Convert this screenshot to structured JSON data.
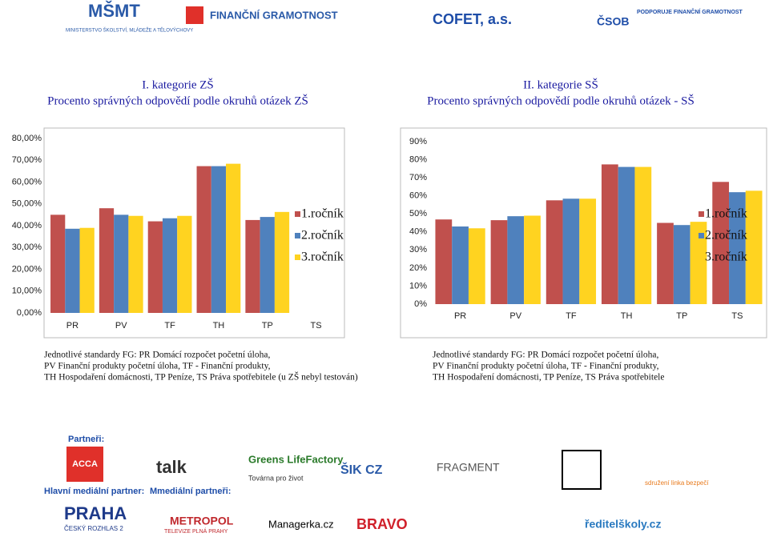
{
  "logos": {
    "msmt": "MINISTERSTVO ŠKOLSTVÍ, MLÁDEŽE A TĚLOVÝCHOVY",
    "fg": "FINANČNÍ GRAMOTNOST",
    "cofet": "COFET, a.s.",
    "csob": "ČSOB",
    "csob_text": "PODPORUJE FINANČNÍ GRAMOTNOST"
  },
  "chart_data": [
    {
      "type": "bar",
      "title": "I. kategorie ZŠ",
      "subtitle": "Procento správných odpovědí podle okruhů otázek  ZŠ",
      "categories": [
        "PR",
        "PV",
        "TF",
        "TH",
        "TP",
        "TS"
      ],
      "series": [
        {
          "name": "1.ročník",
          "color": "#c0504d",
          "values": [
            45,
            48,
            42,
            67.3,
            42.6,
            null
          ]
        },
        {
          "name": "2.ročník",
          "color": "#4f81bd",
          "values": [
            38.6,
            45,
            43.4,
            67.3,
            44,
            null
          ]
        },
        {
          "name": "3.ročník",
          "color": "#ffd320",
          "values": [
            39,
            44.5,
            44.5,
            68.4,
            46.3,
            null
          ]
        }
      ],
      "ylim": [
        0,
        80
      ],
      "yticks": [
        {
          "value": 0,
          "label": "0,00%"
        },
        {
          "value": 10,
          "label": "10,00%"
        },
        {
          "value": 20,
          "label": "20,00%"
        },
        {
          "value": 30,
          "label": "30,00%"
        },
        {
          "value": 40,
          "label": "40,00%"
        },
        {
          "value": 50,
          "label": "50,00%"
        },
        {
          "value": 60,
          "label": "60,00%"
        },
        {
          "value": 70,
          "label": "70,00%"
        },
        {
          "value": 80,
          "label": "80,00%"
        }
      ],
      "legend": "right",
      "notes": [
        "Jednotlivé standardy FG: PR  Domácí rozpočet  početní úloha,",
        "PV  Finanční produkty  početní úloha, TF - Finanční produkty,",
        "TH  Hospodaření domácnosti, TP  Peníze, TS  Práva spotřebitele (u ZŠ nebyl testován)"
      ]
    },
    {
      "type": "bar",
      "title": "II. kategorie SŠ",
      "subtitle": "Procento správných odpovědí podle okruhů otázek - SŠ",
      "categories": [
        "PR",
        "PV",
        "TF",
        "TH",
        "TP",
        "TS"
      ],
      "series": [
        {
          "name": "1.ročník",
          "color": "#c0504d",
          "values": [
            46.9,
            46.5,
            57.5,
            77.4,
            45,
            67.7
          ]
        },
        {
          "name": "2.ročník",
          "color": "#4f81bd",
          "values": [
            43,
            48.7,
            58.4,
            76,
            43.8,
            62
          ]
        },
        {
          "name": "3.ročník",
          "color": "#ffd320",
          "values": [
            42,
            49,
            58.4,
            76,
            45.6,
            62.8
          ]
        }
      ],
      "ylim": [
        0,
        90
      ],
      "yticks": [
        {
          "value": 0,
          "label": "0%"
        },
        {
          "value": 10,
          "label": "10%"
        },
        {
          "value": 20,
          "label": "20%"
        },
        {
          "value": 30,
          "label": "30%"
        },
        {
          "value": 40,
          "label": "40%"
        },
        {
          "value": 50,
          "label": "50%"
        },
        {
          "value": 60,
          "label": "60%"
        },
        {
          "value": 70,
          "label": "70%"
        },
        {
          "value": 80,
          "label": "80%"
        },
        {
          "value": 90,
          "label": "90%"
        }
      ],
      "legend": "right",
      "notes": [
        "Jednotlivé standardy FG: PR  Domácí rozpočet  početní úloha,",
        "PV  Finanční produkty  početní úloha, TF - Finanční produkty,",
        "TH  Hospodaření domácnosti, TP  Peníze, TS  Práva spotřebitele"
      ]
    }
  ],
  "partners": {
    "label": "Partneři:",
    "items": [
      "ACCA",
      "talk",
      "Greens LifeFactory",
      "Továrna pro život",
      "ŠIK CZ",
      "FRAGMENT",
      "sdružení linka bezpečí"
    ],
    "main_media_label": "Hlavní mediální partner:",
    "media_label": "Mmediální partneři:",
    "media": [
      "PRAHA",
      "ČESKÝ ROZHLAS 2",
      "METROPOL",
      "TELEVIZE PLNÁ PRAHY",
      "Managerka.cz",
      "BRAVO",
      "ředitelškoly.cz"
    ]
  }
}
